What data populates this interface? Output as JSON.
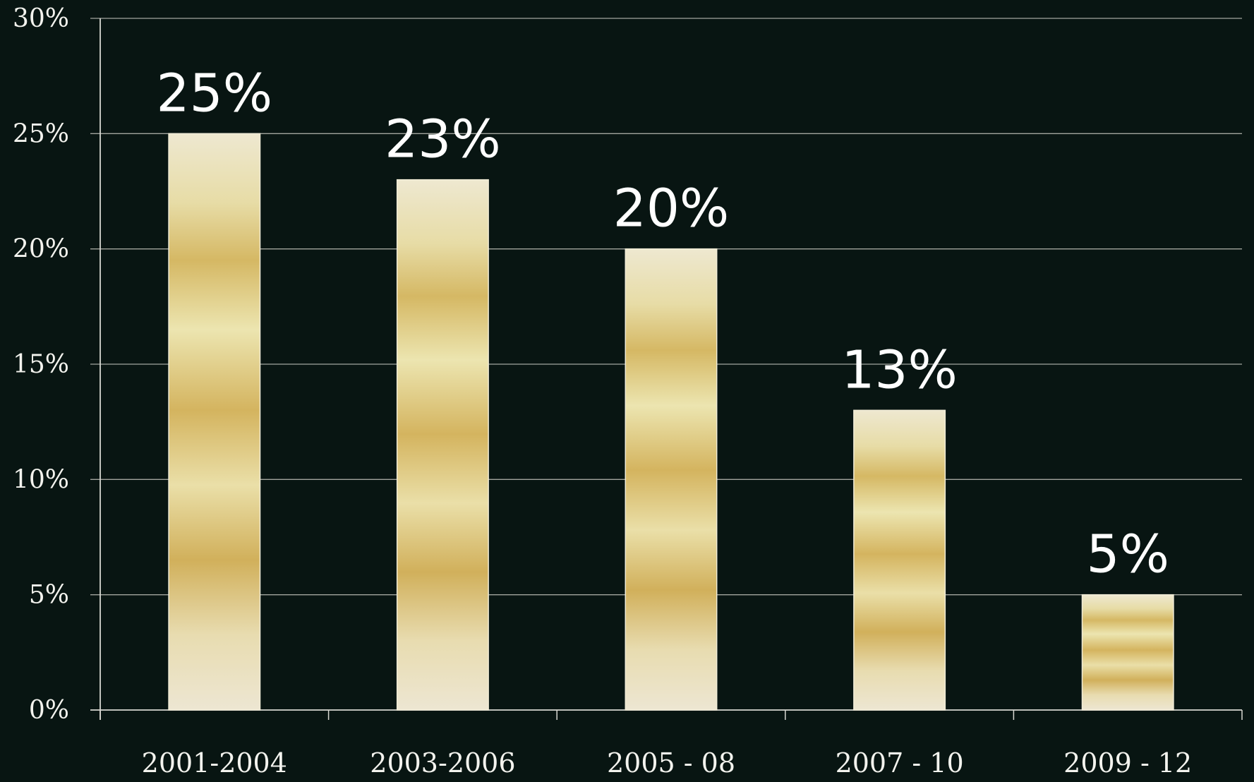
{
  "chart_data": {
    "type": "bar",
    "title": "",
    "xlabel": "",
    "ylabel": "",
    "categories": [
      "2001-2004",
      "2003-2006",
      "2005 -  08",
      "2007 - 10",
      "2009 - 12"
    ],
    "values": [
      25,
      23,
      20,
      13,
      5
    ],
    "data_labels": [
      "25%",
      "23%",
      "20%",
      "13%",
      "5%"
    ],
    "ylim": [
      0,
      30
    ],
    "yticks": [
      0,
      5,
      10,
      15,
      20,
      25,
      30
    ],
    "ytick_labels": [
      "0%",
      "5%",
      "10%",
      "15%",
      "20%",
      "25%",
      "30%"
    ],
    "grid": true,
    "legend": "none",
    "colors": {
      "background": "#081512",
      "bar_light": "#ece5c8",
      "bar_gold": "#d2b35d",
      "text": "#f3f3ee",
      "grid": "#c9c9c2"
    }
  }
}
